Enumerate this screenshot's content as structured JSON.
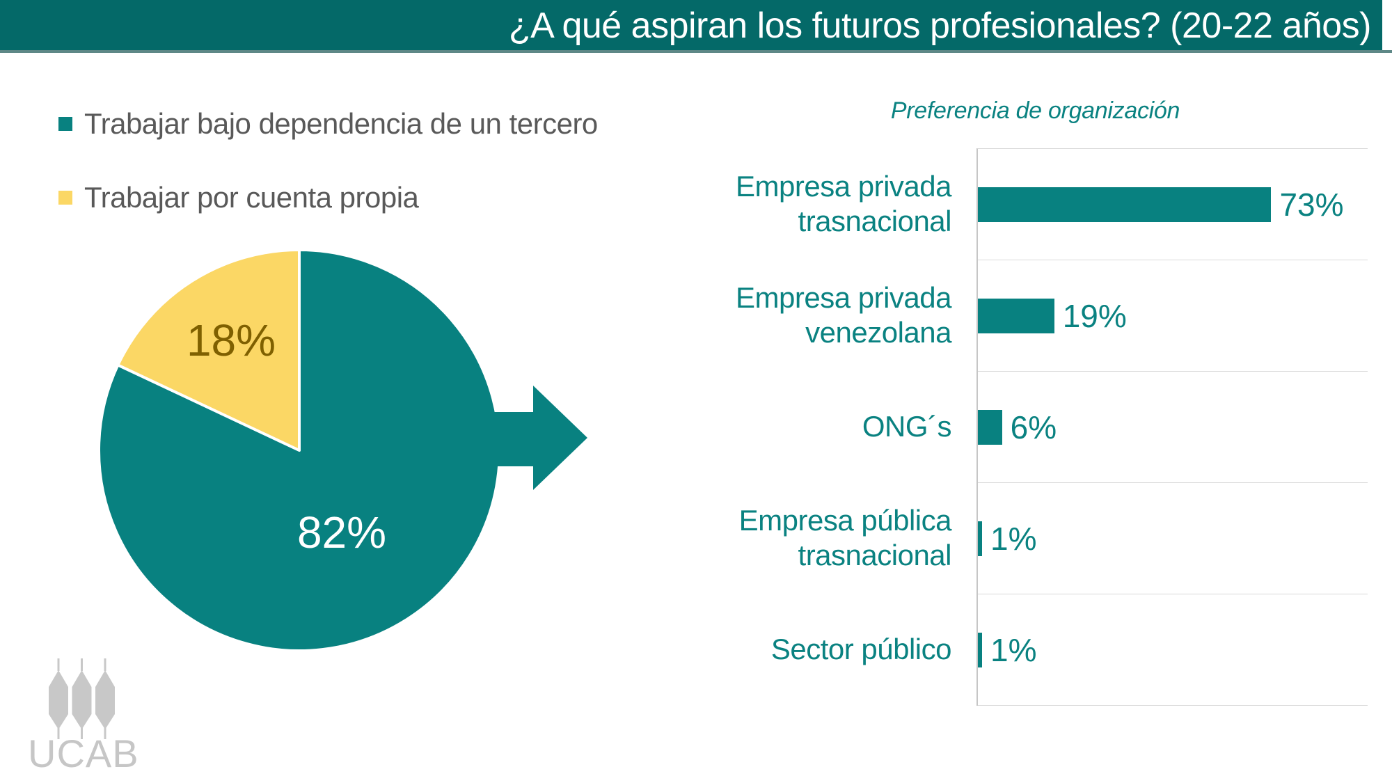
{
  "header": {
    "title": "¿A qué aspiran los futuros profesionales? (20-22 años)",
    "bg_color": "#046968",
    "text_color": "#FFFFFF"
  },
  "legend": {
    "items": [
      {
        "label": "Trabajar bajo dependencia de un tercero",
        "color": "#088180"
      },
      {
        "label": "Trabajar por cuenta propia",
        "color": "#FBD765"
      }
    ],
    "text_color": "#595959"
  },
  "chart_data": [
    {
      "type": "pie",
      "title": "",
      "categories": [
        "Trabajar bajo dependencia de un tercero",
        "Trabajar por cuenta propia"
      ],
      "values": [
        82,
        18
      ],
      "labels": [
        "82%",
        "18%"
      ],
      "colors": [
        "#088180",
        "#FBD765"
      ],
      "label_colors": [
        "#FFFFFF",
        "#7F6000"
      ],
      "start_angle": "12 o'clock, 82% slice clockwise, 18% slice upper-left",
      "legend_position": "top-left, outside chart"
    },
    {
      "type": "bar",
      "orientation": "horizontal",
      "title": "Preferencia de organización",
      "categories": [
        "Empresa privada trasnacional",
        "Empresa privada venezolana",
        "ONG´s",
        "Empresa pública trasnacional",
        "Sector público"
      ],
      "category_lines": [
        [
          "Empresa privada",
          "trasnacional"
        ],
        [
          "Empresa privada",
          "venezolana"
        ],
        [
          "ONG´s"
        ],
        [
          "Empresa pública",
          "trasnacional"
        ],
        [
          "Sector público"
        ]
      ],
      "values": [
        73,
        19,
        6,
        1,
        1
      ],
      "labels": [
        "73%",
        "19%",
        "6%",
        "1%",
        "1%"
      ],
      "xlim": [
        0,
        97
      ],
      "bar_color": "#088180",
      "label_color": "#0A8281",
      "grid": true,
      "gridline_color": "#D9D9D9",
      "axis_color": "#C6C6C6"
    }
  ],
  "arrow": {
    "color": "#088180"
  },
  "logo": {
    "text": "UCAB",
    "color": "#C6C6C6"
  }
}
